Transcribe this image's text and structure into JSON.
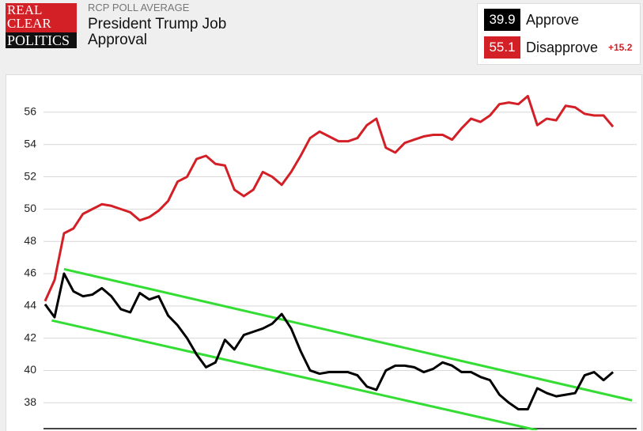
{
  "header": {
    "logo": [
      "REAL",
      "CLEAR",
      "POLITICS"
    ],
    "subtitle": "RCP POLL AVERAGE",
    "title": "President Trump Job Approval",
    "spread": "+15.2"
  },
  "chart_data": {
    "type": "line",
    "x": [
      0,
      1,
      2,
      3,
      4,
      5,
      6,
      7,
      8,
      9,
      10,
      11,
      12,
      13,
      14,
      15,
      16,
      17,
      18,
      19,
      20,
      21,
      22,
      23,
      24,
      25,
      26,
      27,
      28,
      29,
      30,
      31,
      32,
      33,
      34,
      35,
      36,
      37,
      38,
      39,
      40,
      41,
      42,
      43,
      44,
      45,
      46,
      47,
      48,
      49,
      50,
      51,
      52,
      53,
      54,
      55,
      56,
      57,
      58,
      59,
      60
    ],
    "xlim": [
      0,
      62.5
    ],
    "ylim": [
      36.3,
      58.2
    ],
    "yticks": [
      38,
      40,
      42,
      44,
      46,
      48,
      50,
      52,
      54,
      56
    ],
    "grid": true,
    "series": [
      {
        "name": "Approve",
        "color": "#000000",
        "current": 39.9,
        "values": [
          44.1,
          43.3,
          46.0,
          44.9,
          44.6,
          44.7,
          45.1,
          44.6,
          43.8,
          43.6,
          44.8,
          44.4,
          44.6,
          43.4,
          42.8,
          42.0,
          41.0,
          40.2,
          40.5,
          41.9,
          41.3,
          42.2,
          42.4,
          42.6,
          42.9,
          43.5,
          42.6,
          41.2,
          40.0,
          39.8,
          39.9,
          39.9,
          39.9,
          39.7,
          39.0,
          38.8,
          40.0,
          40.3,
          40.3,
          40.2,
          39.9,
          40.1,
          40.5,
          40.3,
          39.9,
          39.9,
          39.6,
          39.4,
          38.5,
          38.0,
          37.6,
          37.6,
          38.9,
          38.6,
          38.4,
          38.5,
          38.6,
          39.7,
          39.9,
          39.4,
          39.9
        ]
      },
      {
        "name": "Disapprove",
        "color": "#d31f26",
        "current": 55.1,
        "values": [
          44.3,
          45.6,
          48.5,
          48.8,
          49.7,
          50.0,
          50.3,
          50.2,
          50.0,
          49.8,
          49.3,
          49.5,
          49.9,
          50.5,
          51.7,
          52.0,
          53.1,
          53.3,
          52.8,
          52.7,
          51.2,
          50.8,
          51.2,
          52.3,
          52.0,
          51.5,
          52.3,
          53.3,
          54.4,
          54.8,
          54.5,
          54.2,
          54.2,
          54.4,
          55.2,
          55.6,
          53.8,
          53.5,
          54.1,
          54.3,
          54.5,
          54.6,
          54.6,
          54.3,
          55.0,
          55.6,
          55.4,
          55.8,
          56.5,
          56.6,
          56.5,
          57.0,
          55.2,
          55.6,
          55.5,
          56.4,
          56.3,
          55.9,
          55.8,
          55.8,
          55.1
        ]
      }
    ],
    "trend_lines": [
      {
        "color": "#33dd33",
        "x": [
          2,
          62
        ],
        "values": [
          46.28,
          38.15
        ]
      },
      {
        "color": "#33dd33",
        "x": [
          0.7,
          52
        ],
        "values": [
          43.1,
          36.3
        ]
      }
    ]
  }
}
